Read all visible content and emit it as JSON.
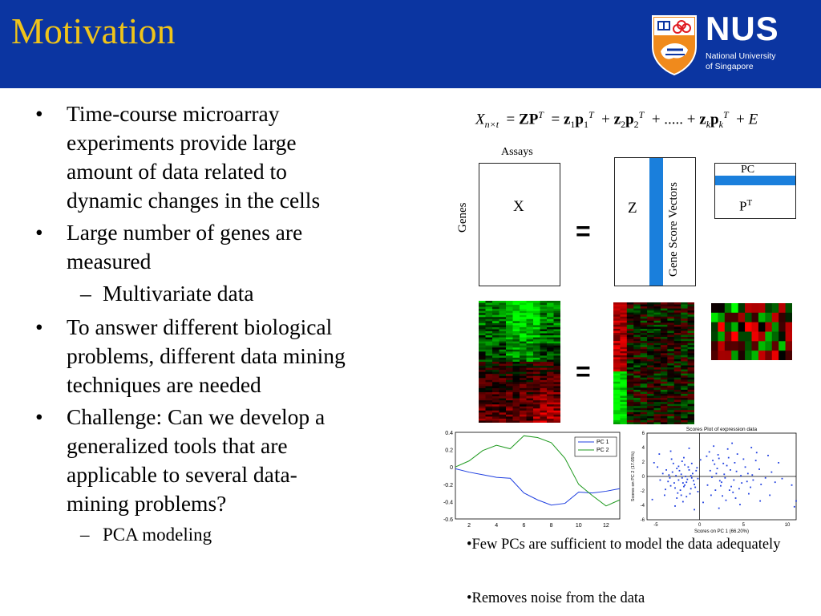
{
  "header": {
    "title": "Motivation",
    "logo": {
      "name": "NUS",
      "line1": "National University",
      "line2": "of Singapore"
    }
  },
  "bullets": [
    {
      "level": 1,
      "lines": [
        "Time-course microarray",
        "experiments provide large",
        "amount of data related to",
        "dynamic changes in the cells"
      ]
    },
    {
      "level": 1,
      "lines": [
        "Large number of genes are",
        "measured"
      ]
    },
    {
      "level": 2,
      "lines": [
        "Multivariate data"
      ]
    },
    {
      "level": 1,
      "lines": [
        "To answer different biological",
        "problems, different data mining",
        "techniques are needed"
      ]
    },
    {
      "level": 1,
      "lines": [
        "Challenge: Can we develop a",
        "generalized tools that are",
        "applicable to several data-",
        "mining problems?"
      ]
    },
    {
      "level": 2,
      "lines": [
        "PCA modeling"
      ]
    }
  ],
  "diagram": {
    "assays_label": "Assays",
    "genes_label": "Genes",
    "x_label": "X",
    "z_label": "Z",
    "gene_score_label": "Gene Score Vectors",
    "pc_label": "PC",
    "pt_label": "P",
    "pt_sup": "T",
    "equals": "=",
    "colors": {
      "accent_bar": "#1a7fdc",
      "heat_red": "#e01010",
      "heat_green": "#12d012"
    }
  },
  "chart_data": [
    {
      "type": "line",
      "x": [
        1,
        2,
        3,
        4,
        5,
        6,
        7,
        8,
        9,
        10,
        11,
        12,
        13
      ],
      "series": [
        {
          "name": "PC 1",
          "color": "#1f3fe0",
          "values": [
            -0.02,
            -0.06,
            -0.09,
            -0.12,
            -0.13,
            -0.3,
            -0.38,
            -0.44,
            -0.42,
            -0.29,
            -0.3,
            -0.28,
            -0.25
          ]
        },
        {
          "name": "PC 2",
          "color": "#1f9a1f",
          "values": [
            0.0,
            0.07,
            0.19,
            0.25,
            0.21,
            0.36,
            0.34,
            0.28,
            0.1,
            -0.2,
            -0.33,
            -0.45,
            -0.38
          ]
        }
      ],
      "xticks": [
        "2",
        "4",
        "6",
        "8",
        "10",
        "12"
      ],
      "yticks": [
        "0.4",
        "0.2",
        "0",
        "-0.2",
        "-0.4",
        "-0.6"
      ],
      "xlim": [
        1,
        13
      ],
      "ylim": [
        -0.6,
        0.4
      ],
      "legend": "top-right"
    },
    {
      "type": "scatter",
      "title": "Scores Plot of expression data",
      "xlabel": "Scores on PC 1 (66.20%)",
      "ylabel": "Scores on PC 2 (17.05%)",
      "xticks": [
        "-5",
        "0",
        "5",
        "10"
      ],
      "yticks": [
        "6",
        "4",
        "2",
        "0",
        "-2",
        "-4",
        "-6"
      ],
      "xlim": [
        -6,
        11
      ],
      "ylim": [
        -6,
        6
      ],
      "color": "#1f3fe0",
      "points": [
        [
          -2.1,
          0.3
        ],
        [
          -1.5,
          -0.8
        ],
        [
          -2.6,
          1.1
        ],
        [
          -0.9,
          -0.2
        ],
        [
          -1.8,
          -1.4
        ],
        [
          -3.1,
          0.6
        ],
        [
          -2.4,
          -0.5
        ],
        [
          -1.2,
          0.9
        ],
        [
          -0.6,
          -1.1
        ],
        [
          -2.9,
          -0.9
        ],
        [
          -1.7,
          1.6
        ],
        [
          -3.4,
          -0.2
        ],
        [
          -2.2,
          -1.9
        ],
        [
          -0.8,
          0.4
        ],
        [
          -1.4,
          -0.4
        ],
        [
          -2.7,
          0.1
        ],
        [
          -3.8,
          0.9
        ],
        [
          -1.0,
          -1.7
        ],
        [
          -2.0,
          2.1
        ],
        [
          -3.3,
          -1.3
        ],
        [
          -1.6,
          0.0
        ],
        [
          -0.4,
          0.8
        ],
        [
          -2.5,
          -2.3
        ],
        [
          -4.2,
          0.4
        ],
        [
          -1.9,
          -0.9
        ],
        [
          -3.0,
          1.8
        ],
        [
          -0.7,
          -0.6
        ],
        [
          -2.3,
          0.8
        ],
        [
          -1.1,
          -2.4
        ],
        [
          -3.6,
          -0.7
        ],
        [
          -2.8,
          -1.6
        ],
        [
          -1.3,
          1.3
        ],
        [
          -0.2,
          -0.3
        ],
        [
          -4.5,
          -0.5
        ],
        [
          -2.0,
          -0.2
        ],
        [
          -1.5,
          -2.8
        ],
        [
          -3.2,
          2.4
        ],
        [
          -0.9,
          1.8
        ],
        [
          -2.6,
          -3.0
        ],
        [
          -4.8,
          1.3
        ],
        [
          -1.7,
          -1.2
        ],
        [
          -3.9,
          -1.8
        ],
        [
          -0.5,
          -1.5
        ],
        [
          -2.4,
          1.4
        ],
        [
          -1.0,
          0.1
        ],
        [
          -3.5,
          0.2
        ],
        [
          -2.1,
          -2.6
        ],
        [
          -0.3,
          1.2
        ],
        [
          -4.0,
          -2.6
        ],
        [
          -1.8,
          2.6
        ],
        [
          1.2,
          0.8
        ],
        [
          2.3,
          -0.6
        ],
        [
          3.1,
          1.5
        ],
        [
          1.8,
          -1.9
        ],
        [
          2.9,
          -0.2
        ],
        [
          4.2,
          0.7
        ],
        [
          1.5,
          2.2
        ],
        [
          3.6,
          -1.4
        ],
        [
          2.1,
          3.0
        ],
        [
          4.8,
          -0.9
        ],
        [
          0.9,
          -1.2
        ],
        [
          3.3,
          2.6
        ],
        [
          5.5,
          0.4
        ],
        [
          2.6,
          -2.7
        ],
        [
          1.4,
          -0.1
        ],
        [
          4.0,
          1.9
        ],
        [
          6.1,
          -0.5
        ],
        [
          2.0,
          1.1
        ],
        [
          3.8,
          -2.2
        ],
        [
          5.0,
          2.4
        ],
        [
          1.1,
          3.4
        ],
        [
          2.8,
          0.3
        ],
        [
          4.5,
          -1.7
        ],
        [
          6.8,
          1.0
        ],
        [
          3.0,
          -3.3
        ],
        [
          1.7,
          1.7
        ],
        [
          5.8,
          -1.5
        ],
        [
          2.4,
          -1.3
        ],
        [
          4.3,
          3.1
        ],
        [
          7.5,
          -0.2
        ],
        [
          3.5,
          0.9
        ],
        [
          1.3,
          -2.6
        ],
        [
          5.2,
          1.3
        ],
        [
          6.4,
          2.2
        ],
        [
          2.2,
          2.5
        ],
        [
          3.9,
          -0.5
        ],
        [
          4.7,
          0.1
        ],
        [
          8.2,
          0.6
        ],
        [
          0.8,
          2.8
        ],
        [
          3.4,
          -1.9
        ],
        [
          5.6,
          -2.4
        ],
        [
          2.7,
          1.8
        ],
        [
          6.0,
          0.2
        ],
        [
          4.1,
          -3.0
        ],
        [
          1.9,
          0.4
        ],
        [
          7.0,
          -1.1
        ],
        [
          3.2,
          3.8
        ],
        [
          5.4,
          -0.7
        ],
        [
          9.4,
          -0.3
        ],
        [
          2.5,
          -0.8
        ],
        [
          1.6,
          4.2
        ],
        [
          3.7,
          4.6
        ],
        [
          6.5,
          3.3
        ],
        [
          -1.2,
          3.9
        ],
        [
          4.6,
          -3.9
        ],
        [
          -2.8,
          -4.1
        ],
        [
          8.0,
          -2.6
        ],
        [
          10.5,
          -1.2
        ],
        [
          -4.6,
          3.1
        ],
        [
          5.9,
          4.0
        ],
        [
          -5.4,
          -3.2
        ],
        [
          2.2,
          -4.4
        ],
        [
          10.8,
          -4.2
        ],
        [
          -3.3,
          3.5
        ],
        [
          7.8,
          2.9
        ],
        [
          0.4,
          -3.6
        ],
        [
          -1.9,
          -3.5
        ],
        [
          6.9,
          -3.4
        ],
        [
          9.0,
          1.9
        ],
        [
          -0.6,
          -4.6
        ],
        [
          11.0,
          -3.4
        ],
        [
          -5.2,
          1.9
        ],
        [
          8.6,
          -0.8
        ],
        [
          0.1,
          2.3
        ],
        [
          -0.2,
          -2.1
        ]
      ]
    }
  ],
  "captions": [
    "•Few PCs are sufficient to model the data adequately",
    "•Removes noise from the data"
  ]
}
